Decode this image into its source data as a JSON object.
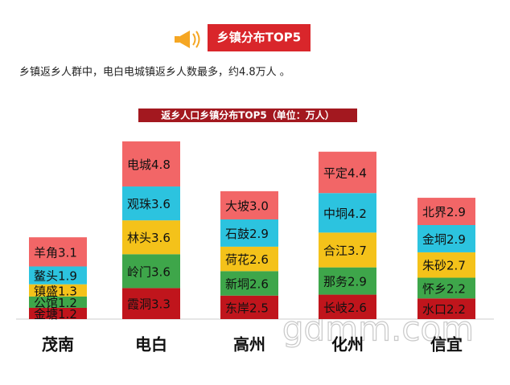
{
  "chart_data": {
    "type": "stacked-bar",
    "header": "乡镇分布TOP5",
    "description": "乡镇返乡人群中，电白电城镇返乡人数最多，约4.8万人 。",
    "title": "返乡人口乡镇分布TOP5（单位：万人）",
    "categories": [
      "茂南",
      "电白",
      "高州",
      "化州",
      "信宜"
    ],
    "colors": [
      "#c0151c",
      "#3ea64a",
      "#f4c21a",
      "#2cc3df",
      "#f26667"
    ],
    "stacks": [
      {
        "towns": [
          "金塘",
          "公馆",
          "镇盛",
          "鳌头",
          "羊角"
        ],
        "values": [
          1.2,
          1.2,
          1.3,
          1.9,
          3.1
        ],
        "value_labels": [
          "1.2",
          "1.2",
          "1.3",
          "1.9",
          "3.1"
        ]
      },
      {
        "towns": [
          "霞洞",
          "岭门",
          "林头",
          "观珠",
          "电城"
        ],
        "values": [
          3.3,
          3.6,
          3.6,
          3.6,
          4.8
        ],
        "value_labels": [
          "3.3",
          "3.6",
          "3.6",
          "3.6",
          "4.8"
        ]
      },
      {
        "towns": [
          "东岸",
          "新垌",
          "荷花",
          "石鼓",
          "大坡"
        ],
        "values": [
          2.5,
          2.6,
          2.6,
          2.9,
          3.0
        ],
        "value_labels": [
          "2.5",
          "2.6",
          "2.6",
          "2.9",
          "3.0"
        ]
      },
      {
        "towns": [
          "长岐",
          "那务",
          "合江",
          "中垌",
          "平定"
        ],
        "values": [
          2.6,
          2.9,
          3.7,
          4.2,
          4.4
        ],
        "value_labels": [
          "2.6",
          "2.9",
          "3.7",
          "4.2",
          "4.4"
        ]
      },
      {
        "towns": [
          "水口",
          "怀乡",
          "朱砂",
          "金垌",
          "北界"
        ],
        "values": [
          2.2,
          2.2,
          2.7,
          2.9,
          2.9
        ],
        "value_labels": [
          "2.2",
          "2.2",
          "2.7",
          "2.9",
          "2.9"
        ]
      }
    ],
    "watermark": "gdmm.com"
  }
}
